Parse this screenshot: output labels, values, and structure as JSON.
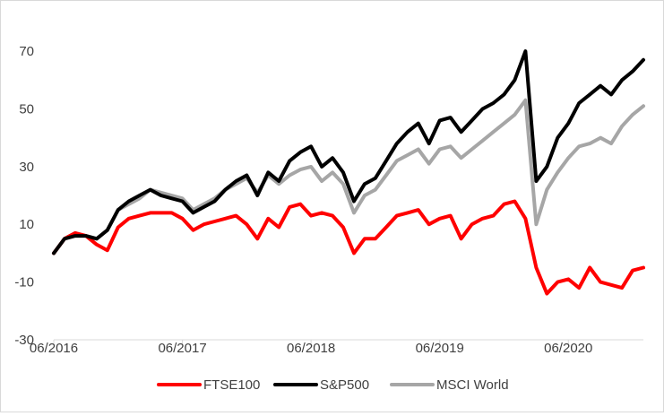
{
  "chart_data": {
    "type": "line",
    "title": "",
    "xlabel": "",
    "ylabel": "",
    "ylim": [
      -30,
      75
    ],
    "yticks": [
      70,
      50,
      30,
      10,
      -10,
      -30
    ],
    "ytick_labels": [
      "70",
      "50",
      "30",
      "10",
      "-10",
      "-30"
    ],
    "xlim": [
      "2016-06",
      "2021-01"
    ],
    "xtick_labels": [
      "06/2016",
      "06/2017",
      "06/2018",
      "06/2019",
      "06/2020"
    ],
    "grid": false,
    "legend_position": "bottom",
    "x": [
      "2016-06",
      "2016-07",
      "2016-08",
      "2016-09",
      "2016-10",
      "2016-11",
      "2016-12",
      "2017-01",
      "2017-02",
      "2017-03",
      "2017-04",
      "2017-05",
      "2017-06",
      "2017-07",
      "2017-08",
      "2017-09",
      "2017-10",
      "2017-11",
      "2017-12",
      "2018-01",
      "2018-02",
      "2018-03",
      "2018-04",
      "2018-05",
      "2018-06",
      "2018-07",
      "2018-08",
      "2018-09",
      "2018-10",
      "2018-11",
      "2018-12",
      "2019-01",
      "2019-02",
      "2019-03",
      "2019-04",
      "2019-05",
      "2019-06",
      "2019-07",
      "2019-08",
      "2019-09",
      "2019-10",
      "2019-11",
      "2019-12",
      "2020-01",
      "2020-02",
      "2020-03",
      "2020-04",
      "2020-05",
      "2020-06",
      "2020-07",
      "2020-08",
      "2020-09",
      "2020-10",
      "2020-11",
      "2020-12",
      "2021-01"
    ],
    "series": [
      {
        "name": "FTSE100",
        "color": "#ff0000",
        "values": [
          0,
          5,
          7,
          6,
          3,
          1,
          9,
          12,
          13,
          14,
          14,
          14,
          12,
          8,
          10,
          11,
          12,
          13,
          10,
          5,
          12,
          9,
          16,
          17,
          13,
          14,
          13,
          9,
          0,
          5,
          5,
          9,
          13,
          14,
          15,
          10,
          12,
          13,
          5,
          10,
          12,
          13,
          17,
          18,
          12,
          -5,
          -14,
          -10,
          -9,
          -12,
          -5,
          -10,
          -11,
          -12,
          -6,
          -5
        ]
      },
      {
        "name": "S&P500",
        "color": "#000000",
        "values": [
          0,
          5,
          6,
          6,
          5,
          8,
          15,
          18,
          20,
          22,
          20,
          19,
          18,
          14,
          16,
          18,
          22,
          25,
          27,
          20,
          28,
          25,
          32,
          35,
          37,
          30,
          33,
          28,
          18,
          24,
          26,
          32,
          38,
          42,
          45,
          38,
          46,
          47,
          42,
          46,
          50,
          52,
          55,
          60,
          70,
          25,
          30,
          40,
          45,
          52,
          55,
          58,
          55,
          60,
          63,
          67
        ]
      },
      {
        "name": "MSCI World",
        "color": "#a6a6a6",
        "values": [
          0,
          5,
          7,
          6,
          5,
          8,
          15,
          17,
          19,
          22,
          21,
          20,
          19,
          15,
          17,
          19,
          22,
          24,
          26,
          21,
          27,
          24,
          27,
          29,
          30,
          25,
          28,
          24,
          14,
          20,
          22,
          27,
          32,
          34,
          36,
          31,
          36,
          37,
          33,
          36,
          39,
          42,
          45,
          48,
          53,
          10,
          22,
          28,
          33,
          37,
          38,
          40,
          38,
          44,
          48,
          51
        ]
      }
    ]
  }
}
